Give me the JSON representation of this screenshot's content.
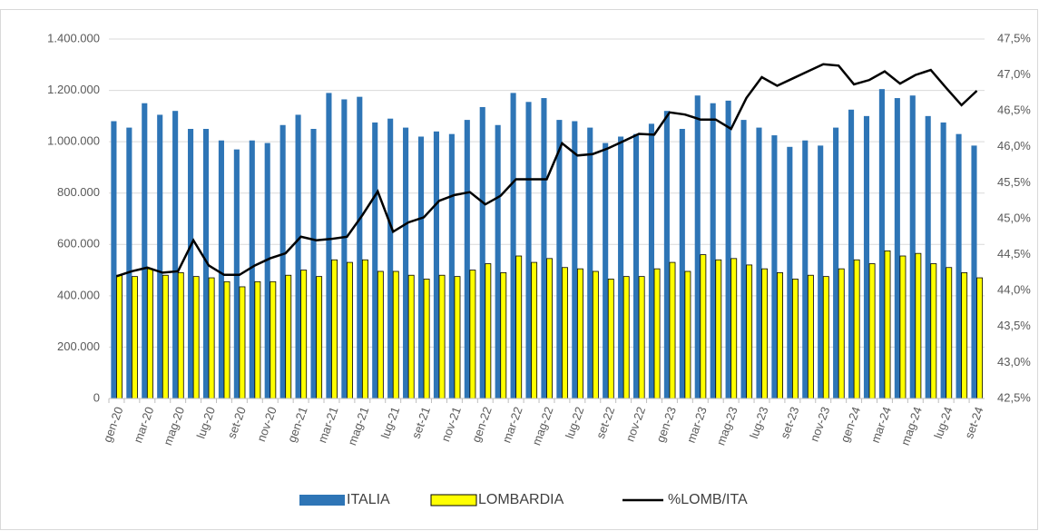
{
  "chart_data": {
    "type": "bar-line",
    "categories": [
      "gen-20",
      null,
      "mar-20",
      null,
      "mag-20",
      null,
      "lug-20",
      null,
      "set-20",
      null,
      "nov-20",
      null,
      "gen-21",
      null,
      "mar-21",
      null,
      "mag-21",
      null,
      "lug-21",
      null,
      "set-21",
      null,
      "nov-21",
      null,
      "gen-22",
      null,
      "mar-22",
      null,
      "mag-22",
      null,
      "lug-22",
      null,
      "set-22",
      null,
      "nov-22",
      null,
      "gen-23",
      null,
      "mar-23",
      null,
      "mag-23",
      null,
      "lug-23",
      null,
      "set-23",
      null,
      "nov-23",
      null,
      "gen-24",
      null,
      "mar-24",
      null,
      "mag-24",
      null,
      "lug-24",
      null,
      "set-24"
    ],
    "series": [
      {
        "name": "ITALIA",
        "color": "#2e75b6",
        "values": [
          1080000,
          1055000,
          1150000,
          1105000,
          1120000,
          1050000,
          1050000,
          1005000,
          970000,
          1005000,
          995000,
          1065000,
          1105000,
          1050000,
          1190000,
          1165000,
          1175000,
          1075000,
          1090000,
          1055000,
          1020000,
          1040000,
          1030000,
          1085000,
          1135000,
          1065000,
          1190000,
          1155000,
          1170000,
          1085000,
          1080000,
          1055000,
          995000,
          1020000,
          1030000,
          1070000,
          1120000,
          1050000,
          1180000,
          1150000,
          1160000,
          1085000,
          1055000,
          1025000,
          980000,
          1005000,
          985000,
          1055000,
          1125000,
          1100000,
          1205000,
          1170000,
          1180000,
          1100000,
          1075000,
          1030000,
          985000
        ]
      },
      {
        "name": "LOMBARDIA",
        "color": "#ffff00",
        "values": [
          480000,
          475000,
          505000,
          480000,
          490000,
          475000,
          470000,
          455000,
          435000,
          455000,
          455000,
          480000,
          500000,
          475000,
          540000,
          530000,
          540000,
          495000,
          495000,
          480000,
          465000,
          480000,
          475000,
          500000,
          525000,
          490000,
          555000,
          530000,
          545000,
          510000,
          505000,
          495000,
          465000,
          475000,
          475000,
          505000,
          530000,
          495000,
          560000,
          540000,
          545000,
          520000,
          505000,
          490000,
          465000,
          480000,
          475000,
          505000,
          540000,
          525000,
          575000,
          555000,
          565000,
          525000,
          510000,
          490000,
          470000
        ]
      },
      {
        "name": "%LOMB/ITA",
        "color": "#000000",
        "axis": "y2",
        "values": [
          44.2,
          44.27,
          44.32,
          44.25,
          44.27,
          44.7,
          44.35,
          44.22,
          44.22,
          44.35,
          44.45,
          44.52,
          44.75,
          44.7,
          44.72,
          44.75,
          45.05,
          45.38,
          44.82,
          44.95,
          45.02,
          45.25,
          45.33,
          45.37,
          45.2,
          45.32,
          45.55,
          45.55,
          45.55,
          46.05,
          45.88,
          45.9,
          45.98,
          46.08,
          46.18,
          46.17,
          46.48,
          46.45,
          46.38,
          46.38,
          46.25,
          46.68,
          46.97,
          46.85,
          46.95,
          47.05,
          47.15,
          47.13,
          46.87,
          46.93,
          47.05,
          46.88,
          47.0,
          47.07,
          46.82,
          46.58,
          46.78
        ]
      }
    ],
    "ylim": [
      0,
      1400000
    ],
    "yticks": [
      0,
      {
        "value": 200000,
        "label": "200.000"
      },
      {
        "value": 400000,
        "label": "400.000"
      },
      {
        "value": 600000,
        "label": "600.000"
      },
      {
        "value": 800000,
        "label": "800.000"
      },
      {
        "value": 1000000,
        "label": "1.000.000"
      },
      {
        "value": 1200000,
        "label": "1.200.000"
      },
      {
        "value": 1400000,
        "label": "1.400.000"
      }
    ],
    "y2lim": [
      42.5,
      47.5
    ],
    "y2ticks": [
      {
        "value": 42.5,
        "label": "42,5%"
      },
      {
        "value": 43,
        "label": "43,0%"
      },
      {
        "value": 43.5,
        "label": "43,5%"
      },
      {
        "value": 44,
        "label": "44,0%"
      },
      {
        "value": 44.5,
        "label": "44,5%"
      },
      {
        "value": 45,
        "label": "45,0%"
      },
      {
        "value": 45.5,
        "label": "45,5%"
      },
      {
        "value": 46,
        "label": "46,0%"
      },
      {
        "value": 46.5,
        "label": "46,5%"
      },
      {
        "value": 47,
        "label": "47,0%"
      },
      {
        "value": 47.5,
        "label": "47,5%"
      }
    ],
    "grid": true,
    "legend": "bottom"
  }
}
